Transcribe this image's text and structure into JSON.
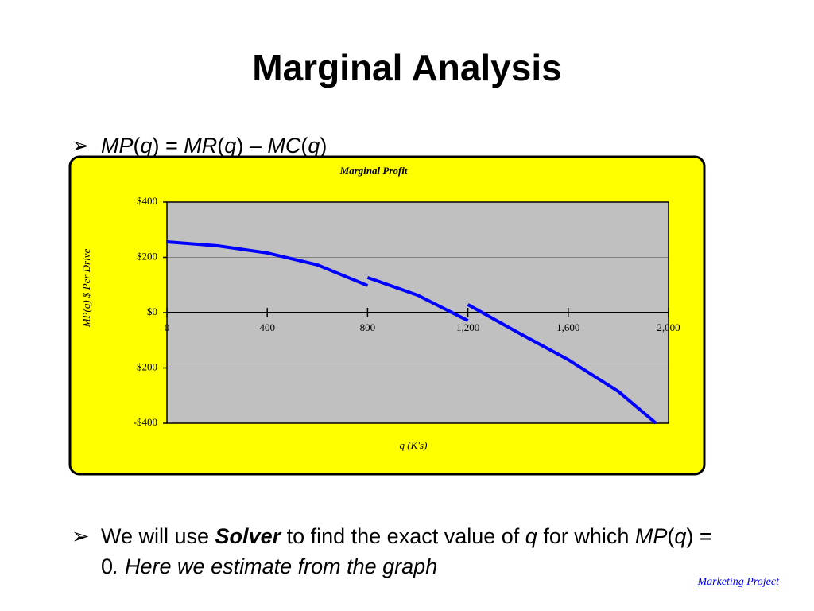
{
  "title": "Marginal Analysis",
  "bullets": [
    [
      "MP",
      "(",
      "q",
      ") = ",
      "MR",
      "(",
      "q",
      ") – ",
      "MC",
      "(",
      "q",
      ")"
    ],
    [
      "We will use ",
      "Solver",
      " to find the exact value of ",
      "q",
      " for which ",
      "MP",
      "(",
      "q",
      ") = 0",
      ". Here we estimate from the graph"
    ]
  ],
  "footer": "Marketing Project",
  "chart_data": {
    "type": "line",
    "title": "Marginal Profit",
    "x_label": "q (K's)",
    "y_label": "MP(q) $ Per Drive",
    "xlim": [
      0,
      2000
    ],
    "xticks": [
      0,
      400,
      800,
      {
        "value": 1200,
        "label": "1,200"
      },
      {
        "value": 1600,
        "label": "1,600"
      },
      {
        "value": 2000,
        "label": "2,000"
      }
    ],
    "ylim": [
      -400,
      400
    ],
    "yticks": [
      {
        "value": 400,
        "label": "$400"
      },
      {
        "value": 200,
        "label": "$200"
      },
      {
        "value": 0,
        "label": "$0"
      },
      {
        "value": -200,
        "label": "-$200"
      },
      {
        "value": -400,
        "label": "-$400"
      }
    ],
    "grid": true,
    "series": [
      {
        "color": "#0000ff",
        "x": [
          0,
          200,
          400,
          600,
          800
        ],
        "values": [
          256,
          242,
          216,
          173,
          98
        ]
      },
      {
        "color": "#0000ff",
        "x": [
          800,
          1000,
          1200
        ],
        "values": [
          127,
          63,
          -29
        ]
      },
      {
        "color": "#0000ff",
        "x": [
          1200,
          1400,
          1600,
          1800,
          1950
        ],
        "values": [
          29,
          -72,
          -170,
          -285,
          -400
        ]
      }
    ]
  }
}
